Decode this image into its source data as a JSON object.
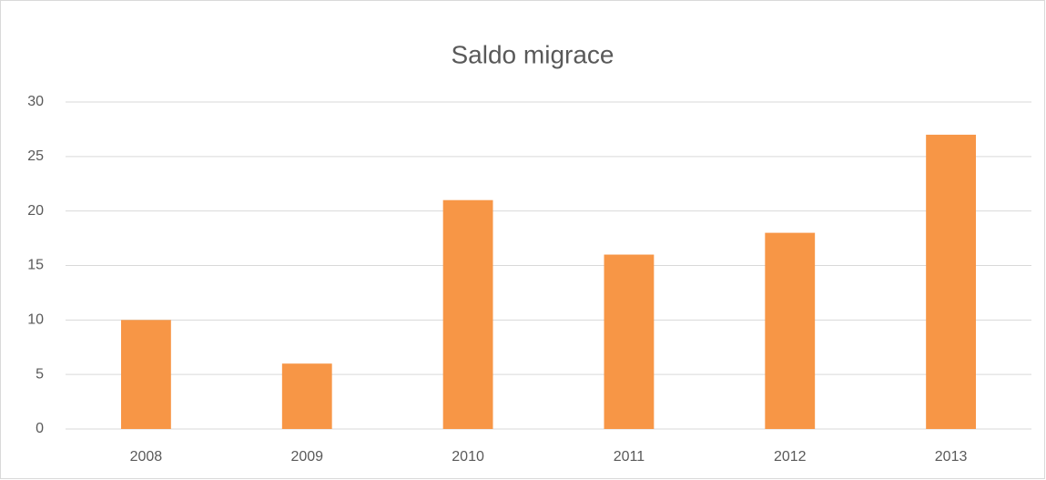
{
  "chart_data": {
    "type": "bar",
    "title": "Saldo migrace",
    "categories": [
      "2008",
      "2009",
      "2010",
      "2011",
      "2012",
      "2013"
    ],
    "values": [
      10,
      6,
      21,
      16,
      18,
      27
    ],
    "color": "#f79646",
    "ylim": [
      0,
      30
    ],
    "yticks": [
      0,
      5,
      10,
      15,
      20,
      25,
      30
    ],
    "grid": true
  }
}
